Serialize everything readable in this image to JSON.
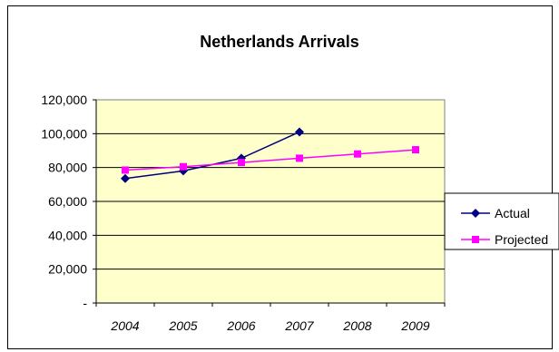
{
  "chart_data": {
    "type": "line",
    "title": "Netherlands Arrivals",
    "categories": [
      "2004",
      "2005",
      "2006",
      "2007",
      "2008",
      "2009"
    ],
    "y_ticks": [
      "-",
      "20,000",
      "40,000",
      "60,000",
      "80,000",
      "100,000",
      "120,000"
    ],
    "ylim": [
      0,
      120000
    ],
    "grid": true,
    "legend_position": "right",
    "series": [
      {
        "name": "Actual",
        "values": [
          73500,
          78000,
          85500,
          101000,
          null,
          null
        ],
        "color": "#000080",
        "marker": "diamond"
      },
      {
        "name": "Projected",
        "values": [
          78500,
          80500,
          83000,
          85500,
          88000,
          90500
        ],
        "color": "#ff00ff",
        "marker": "square"
      }
    ],
    "plot_background": "#ffffcc"
  }
}
